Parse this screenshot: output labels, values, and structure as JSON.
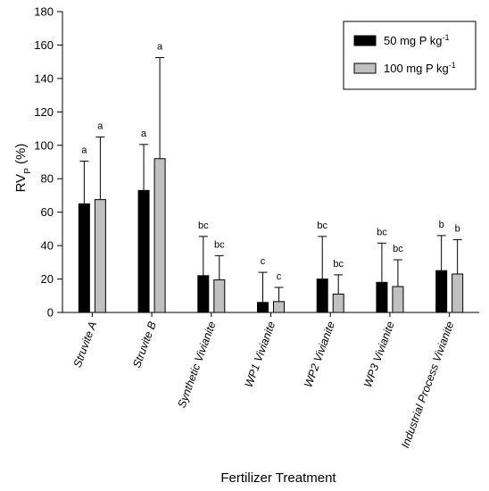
{
  "chart_data": {
    "type": "bar",
    "xlabel": "Fertilizer Treatment",
    "ylabel": {
      "main": "RV",
      "sub": "P",
      "unit": " (%)"
    },
    "ylim": [
      0,
      180
    ],
    "yticks": [
      0,
      20,
      40,
      60,
      80,
      100,
      120,
      140,
      160,
      180
    ],
    "grid": false,
    "legend_position": "top-right",
    "categories": [
      "Struvite A",
      "Struvite B",
      "Synthetic Vivianite",
      "WP1 Vivianite",
      "WP2 Vivianite",
      "WP3 Vivianite",
      "Industrial Process Vivianite"
    ],
    "series": [
      {
        "name": {
          "main": "50 mg P kg",
          "sup": "-1"
        },
        "color": "#000000",
        "values": [
          65,
          73,
          22,
          6,
          20,
          18,
          25
        ],
        "errors": [
          25.5,
          27.5,
          23.5,
          18,
          25.5,
          23.5,
          21
        ],
        "labels": [
          "a",
          "a",
          "bc",
          "c",
          "bc",
          "bc",
          "b"
        ]
      },
      {
        "name": {
          "main": "100 mg P kg",
          "sup": "-1"
        },
        "color": "#c0c0c0",
        "values": [
          67.5,
          92,
          19.5,
          6.5,
          11,
          15.5,
          23
        ],
        "errors": [
          37.5,
          60.5,
          14.5,
          8.5,
          11.5,
          16,
          20.5
        ],
        "labels": [
          "a",
          "a",
          "bc",
          "c",
          "bc",
          "bc",
          "b"
        ]
      }
    ]
  }
}
